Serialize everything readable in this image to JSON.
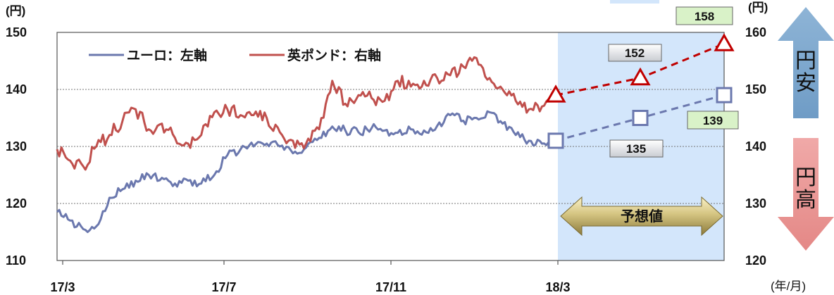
{
  "chart_data": {
    "type": "line",
    "x_tick_labels": [
      "17/3",
      "17/7",
      "17/11",
      "18/3"
    ],
    "x_unit": "(年/月)",
    "left_axis": {
      "unit": "(円)",
      "range": [
        110,
        150
      ],
      "ticks": [
        110,
        120,
        130,
        140,
        150
      ]
    },
    "right_axis": {
      "unit": "(円)",
      "range": [
        120,
        160
      ],
      "ticks": [
        120,
        130,
        140,
        150,
        160
      ]
    },
    "grid": "horizontal dotted",
    "legend": {
      "placement": "top-left"
    },
    "forecast_label": "予想値",
    "arrows": {
      "up": "円安",
      "down": "円高"
    },
    "series": [
      {
        "name": "ユーロ：左軸",
        "axis": "left",
        "color": "#6b78ae",
        "history": [
          [
            "17/3",
            118.5
          ],
          [
            "17/3",
            117.0
          ],
          [
            "17/3",
            115.5
          ],
          [
            "17/4",
            116.0
          ],
          [
            "17/4",
            121.0
          ],
          [
            "17/4",
            122.5
          ],
          [
            "17/4",
            124.0
          ],
          [
            "17/4",
            125.0
          ],
          [
            "17/5",
            124.5
          ],
          [
            "17/5",
            123.5
          ],
          [
            "17/5",
            124.0
          ],
          [
            "17/6",
            123.5
          ],
          [
            "17/6",
            125.0
          ],
          [
            "17/6",
            128.5
          ],
          [
            "17/6",
            129.5
          ],
          [
            "17/7",
            130.0
          ],
          [
            "17/7",
            130.5
          ],
          [
            "17/7",
            130.0
          ],
          [
            "17/8",
            128.8
          ],
          [
            "17/8",
            129.8
          ],
          [
            "17/8",
            131.5
          ],
          [
            "17/9",
            133.5
          ],
          [
            "17/9",
            132.8
          ],
          [
            "17/10",
            132.5
          ],
          [
            "17/10",
            133.2
          ],
          [
            "17/10",
            132.8
          ],
          [
            "17/11",
            132.4
          ],
          [
            "17/11",
            133.0
          ],
          [
            "17/11",
            132.8
          ],
          [
            "17/12",
            133.6
          ],
          [
            "17/12",
            135.5
          ],
          [
            "17/12",
            134.5
          ],
          [
            "18/1",
            135.0
          ],
          [
            "18/1",
            136.0
          ],
          [
            "18/1",
            134.0
          ],
          [
            "18/2",
            132.0
          ],
          [
            "18/2",
            131.0
          ],
          [
            "18/2",
            130.5
          ],
          [
            "18/3",
            131.0
          ]
        ],
        "forecast": [
          131,
          135,
          139
        ],
        "forecast_labels": [
          "135",
          "139"
        ]
      },
      {
        "name": "英ポンド：右軸",
        "axis": "right",
        "color": "#c0504d",
        "history": [
          [
            "17/3",
            139.5
          ],
          [
            "17/3",
            137.5
          ],
          [
            "17/3",
            136.5
          ],
          [
            "17/4",
            140.0
          ],
          [
            "17/4",
            142.0
          ],
          [
            "17/4",
            144.5
          ],
          [
            "17/4",
            146.5
          ],
          [
            "17/4",
            143.0
          ],
          [
            "17/5",
            144.0
          ],
          [
            "17/5",
            141.5
          ],
          [
            "17/5",
            140.5
          ],
          [
            "17/6",
            142.0
          ],
          [
            "17/6",
            146.0
          ],
          [
            "17/6",
            146.5
          ],
          [
            "17/6",
            145.5
          ],
          [
            "17/7",
            145.5
          ],
          [
            "17/7",
            145.0
          ],
          [
            "17/7",
            142.5
          ],
          [
            "17/8",
            141.0
          ],
          [
            "17/8",
            140.5
          ],
          [
            "17/8",
            143.0
          ],
          [
            "17/9",
            151.5
          ],
          [
            "17/9",
            147.5
          ],
          [
            "17/10",
            149.0
          ],
          [
            "17/10",
            148.5
          ],
          [
            "17/10",
            148.0
          ],
          [
            "17/11",
            151.5
          ],
          [
            "17/11",
            150.5
          ],
          [
            "17/11",
            151.5
          ],
          [
            "17/12",
            152.0
          ],
          [
            "17/12",
            152.5
          ],
          [
            "17/12",
            154.0
          ],
          [
            "18/1",
            155.5
          ],
          [
            "18/1",
            152.0
          ],
          [
            "18/1",
            150.0
          ],
          [
            "18/2",
            148.0
          ],
          [
            "18/2",
            146.5
          ],
          [
            "18/2",
            147.0
          ],
          [
            "18/3",
            149.0
          ]
        ],
        "forecast": [
          149,
          152,
          158
        ],
        "forecast_labels": [
          "152",
          "158"
        ]
      }
    ]
  }
}
